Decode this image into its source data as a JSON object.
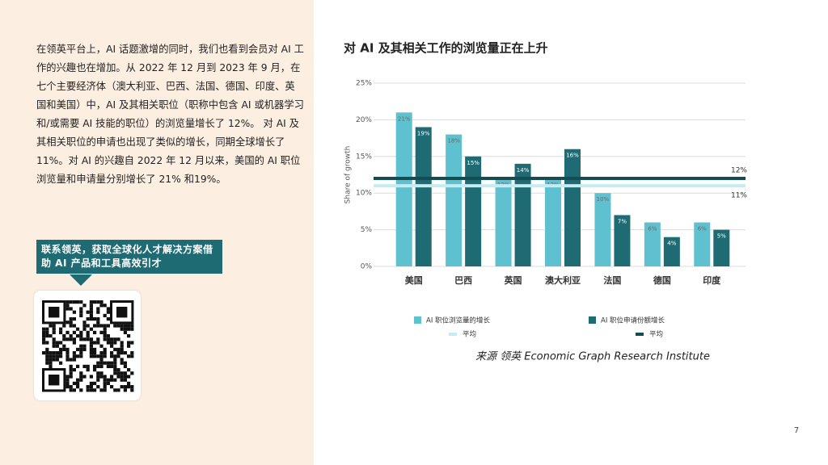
{
  "intro": {
    "paragraph": "在领英平台上，AI 话题激增的同时，我们也看到会员对 AI 工作的兴趣也在增加。从 2022 年 12 月到 2023 年 9 月，在七个主要经济体（澳大利亚、巴西、法国、德国、印度、英国和美国）中，AI 及其相关职位（职称中包含 AI 或机器学习和/或需要 AI 技能的职位）的浏览量增长了 12%。 对 AI 及其相关职位的申请也出现了类似的增长，同期全球增长了 11%。对 AI 的兴趣自 2022 年 12 月以来，美国的 AI 职位浏览量和申请量分别增长了 21% 和19%。",
    "callout": "联系领英，获取全球化人才解决方案借助 AI 产品和工具高效引才"
  },
  "source": "来源 领英 Economic Graph Research Institute",
  "page_number": "7",
  "chart_data": {
    "type": "bar",
    "title": "对 AI 及其相关工作的浏览量正在上升",
    "ylabel": "Share of growth",
    "categories": [
      "美国",
      "巴西",
      "英国",
      "澳大利亚",
      "法国",
      "德国",
      "印度"
    ],
    "series": [
      {
        "name": "AI 职位浏览量的增长",
        "color": "#5fc0cf",
        "values": [
          21,
          18,
          12,
          12,
          10,
          6,
          6
        ],
        "value_labels": [
          "21%",
          "18%",
          "12%",
          "12%",
          "10%",
          "6%",
          "6%"
        ]
      },
      {
        "name": "AI 职位申请份额增长",
        "color": "#1f6b74",
        "values": [
          19,
          15,
          14,
          16,
          7,
          4,
          5
        ],
        "value_labels": [
          "19%",
          "15%",
          "14%",
          "16%",
          "7%",
          "4%",
          "5%"
        ]
      }
    ],
    "averages": [
      {
        "name": "平均",
        "color": "#c4ecf2",
        "value": 11,
        "value_label": "11%"
      },
      {
        "name": "平均",
        "color": "#134d52",
        "value": 12,
        "value_label": "12%"
      }
    ],
    "ylim": [
      0,
      25
    ],
    "yticks": [
      {
        "value": 0,
        "label": "0%"
      },
      {
        "value": 5,
        "label": "5%"
      },
      {
        "value": 10,
        "label": "10%"
      },
      {
        "value": 15,
        "label": "15%"
      },
      {
        "value": 20,
        "label": "20%"
      },
      {
        "value": 25,
        "label": "25%"
      }
    ],
    "grid": true
  }
}
